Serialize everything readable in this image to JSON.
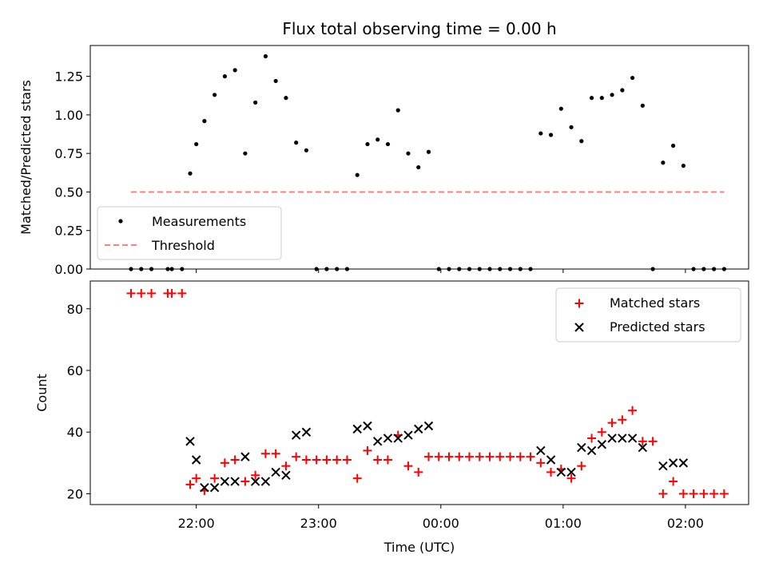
{
  "chart_data": [
    {
      "type": "scatter",
      "title": "Flux total observing time = 0.00 h",
      "xlabel": "",
      "ylabel": "Matched/Predicted stars",
      "ylim": [
        0,
        1.45
      ],
      "xlim": [
        "21:08",
        "02:31"
      ],
      "yticks": [
        "0.00",
        "0.25",
        "0.50",
        "0.75",
        "1.00",
        "1.25"
      ],
      "legend_position": "bottom-left",
      "series": [
        {
          "name": "Measurements",
          "marker": "dot",
          "color": "#000000",
          "points": [
            [
              "21:28",
              0
            ],
            [
              "21:33",
              0
            ],
            [
              "21:38",
              0
            ],
            [
              "21:46",
              0
            ],
            [
              "21:48",
              0
            ],
            [
              "21:53",
              0
            ],
            [
              "21:57",
              0.62
            ],
            [
              "22:00",
              0.81
            ],
            [
              "22:04",
              0.96
            ],
            [
              "22:09",
              1.13
            ],
            [
              "22:14",
              1.25
            ],
            [
              "22:19",
              1.29
            ],
            [
              "22:24",
              0.75
            ],
            [
              "22:29",
              1.08
            ],
            [
              "22:34",
              1.38
            ],
            [
              "22:39",
              1.22
            ],
            [
              "22:44",
              1.11
            ],
            [
              "22:49",
              0.82
            ],
            [
              "22:54",
              0.77
            ],
            [
              "22:59",
              0
            ],
            [
              "23:04",
              0
            ],
            [
              "23:09",
              0
            ],
            [
              "23:14",
              0
            ],
            [
              "23:19",
              0.61
            ],
            [
              "23:24",
              0.81
            ],
            [
              "23:29",
              0.84
            ],
            [
              "23:34",
              0.81
            ],
            [
              "23:39",
              1.03
            ],
            [
              "23:44",
              0.75
            ],
            [
              "23:49",
              0.66
            ],
            [
              "23:54",
              0.76
            ],
            [
              "23:59",
              0
            ],
            [
              "00:04",
              0
            ],
            [
              "00:09",
              0
            ],
            [
              "00:14",
              0
            ],
            [
              "00:19",
              0
            ],
            [
              "00:24",
              0
            ],
            [
              "00:29",
              0
            ],
            [
              "00:34",
              0
            ],
            [
              "00:39",
              0
            ],
            [
              "00:44",
              0
            ],
            [
              "00:49",
              0.88
            ],
            [
              "00:54",
              0.87
            ],
            [
              "00:59",
              1.04
            ],
            [
              "01:04",
              0.92
            ],
            [
              "01:09",
              0.83
            ],
            [
              "01:14",
              1.11
            ],
            [
              "01:19",
              1.11
            ],
            [
              "01:24",
              1.13
            ],
            [
              "01:29",
              1.16
            ],
            [
              "01:34",
              1.24
            ],
            [
              "01:39",
              1.06
            ],
            [
              "01:44",
              0
            ],
            [
              "01:49",
              0.69
            ],
            [
              "01:54",
              0.8
            ],
            [
              "01:59",
              0.67
            ],
            [
              "02:04",
              0
            ],
            [
              "02:09",
              0
            ],
            [
              "02:14",
              0
            ],
            [
              "02:19",
              0
            ]
          ]
        },
        {
          "name": "Threshold",
          "style": "dashed-line",
          "color": "#ff7f7f",
          "points": [
            [
              "21:28",
              0.5
            ],
            [
              "02:19",
              0.5
            ]
          ]
        }
      ]
    },
    {
      "type": "scatter",
      "title": "",
      "xlabel": "Time (UTC)",
      "ylabel": "Count",
      "ylim": [
        16.5,
        89
      ],
      "xlim": [
        "21:08",
        "02:31"
      ],
      "yticks": [
        "20",
        "40",
        "60",
        "80"
      ],
      "xticks": [
        "22:00",
        "23:00",
        "00:00",
        "01:00",
        "02:00"
      ],
      "legend_position": "top-right",
      "series": [
        {
          "name": "Matched stars",
          "marker": "plus",
          "color": "#ff0000",
          "points": [
            [
              "21:28",
              85
            ],
            [
              "21:33",
              85
            ],
            [
              "21:38",
              85
            ],
            [
              "21:46",
              85
            ],
            [
              "21:48",
              85
            ],
            [
              "21:53",
              85
            ],
            [
              "21:57",
              23
            ],
            [
              "22:00",
              25
            ],
            [
              "22:04",
              21
            ],
            [
              "22:09",
              25
            ],
            [
              "22:14",
              30
            ],
            [
              "22:19",
              31
            ],
            [
              "22:24",
              24
            ],
            [
              "22:29",
              26
            ],
            [
              "22:34",
              33
            ],
            [
              "22:39",
              33
            ],
            [
              "22:44",
              29
            ],
            [
              "22:49",
              32
            ],
            [
              "22:54",
              31
            ],
            [
              "22:59",
              31
            ],
            [
              "23:04",
              31
            ],
            [
              "23:09",
              31
            ],
            [
              "23:14",
              31
            ],
            [
              "23:19",
              25
            ],
            [
              "23:24",
              34
            ],
            [
              "23:29",
              31
            ],
            [
              "23:34",
              31
            ],
            [
              "23:39",
              39
            ],
            [
              "23:44",
              29
            ],
            [
              "23:49",
              27
            ],
            [
              "23:54",
              32
            ],
            [
              "23:59",
              32
            ],
            [
              "00:04",
              32
            ],
            [
              "00:09",
              32
            ],
            [
              "00:14",
              32
            ],
            [
              "00:19",
              32
            ],
            [
              "00:24",
              32
            ],
            [
              "00:29",
              32
            ],
            [
              "00:34",
              32
            ],
            [
              "00:39",
              32
            ],
            [
              "00:44",
              32
            ],
            [
              "00:49",
              30
            ],
            [
              "00:54",
              27
            ],
            [
              "00:59",
              28
            ],
            [
              "01:04",
              25
            ],
            [
              "01:09",
              29
            ],
            [
              "01:14",
              38
            ],
            [
              "01:19",
              40
            ],
            [
              "01:24",
              43
            ],
            [
              "01:29",
              44
            ],
            [
              "01:34",
              47
            ],
            [
              "01:39",
              37
            ],
            [
              "01:44",
              37
            ],
            [
              "01:49",
              20
            ],
            [
              "01:54",
              24
            ],
            [
              "01:59",
              20
            ],
            [
              "02:04",
              20
            ],
            [
              "02:09",
              20
            ],
            [
              "02:14",
              20
            ],
            [
              "02:19",
              20
            ]
          ]
        },
        {
          "name": "Predicted stars",
          "marker": "x",
          "color": "#000000",
          "points": [
            [
              "21:57",
              37
            ],
            [
              "22:00",
              31
            ],
            [
              "22:04",
              22
            ],
            [
              "22:09",
              22
            ],
            [
              "22:14",
              24
            ],
            [
              "22:19",
              24
            ],
            [
              "22:24",
              32
            ],
            [
              "22:29",
              24
            ],
            [
              "22:34",
              24
            ],
            [
              "22:39",
              27
            ],
            [
              "22:44",
              26
            ],
            [
              "22:49",
              39
            ],
            [
              "22:54",
              40
            ],
            [
              "23:19",
              41
            ],
            [
              "23:24",
              42
            ],
            [
              "23:29",
              37
            ],
            [
              "23:34",
              38
            ],
            [
              "23:39",
              38
            ],
            [
              "23:44",
              39
            ],
            [
              "23:49",
              41
            ],
            [
              "23:54",
              42
            ],
            [
              "00:49",
              34
            ],
            [
              "00:54",
              31
            ],
            [
              "00:59",
              27
            ],
            [
              "01:04",
              27
            ],
            [
              "01:09",
              35
            ],
            [
              "01:14",
              34
            ],
            [
              "01:19",
              36
            ],
            [
              "01:24",
              38
            ],
            [
              "01:29",
              38
            ],
            [
              "01:34",
              38
            ],
            [
              "01:39",
              35
            ],
            [
              "01:49",
              29
            ],
            [
              "01:54",
              30
            ],
            [
              "01:59",
              30
            ]
          ]
        }
      ]
    }
  ]
}
